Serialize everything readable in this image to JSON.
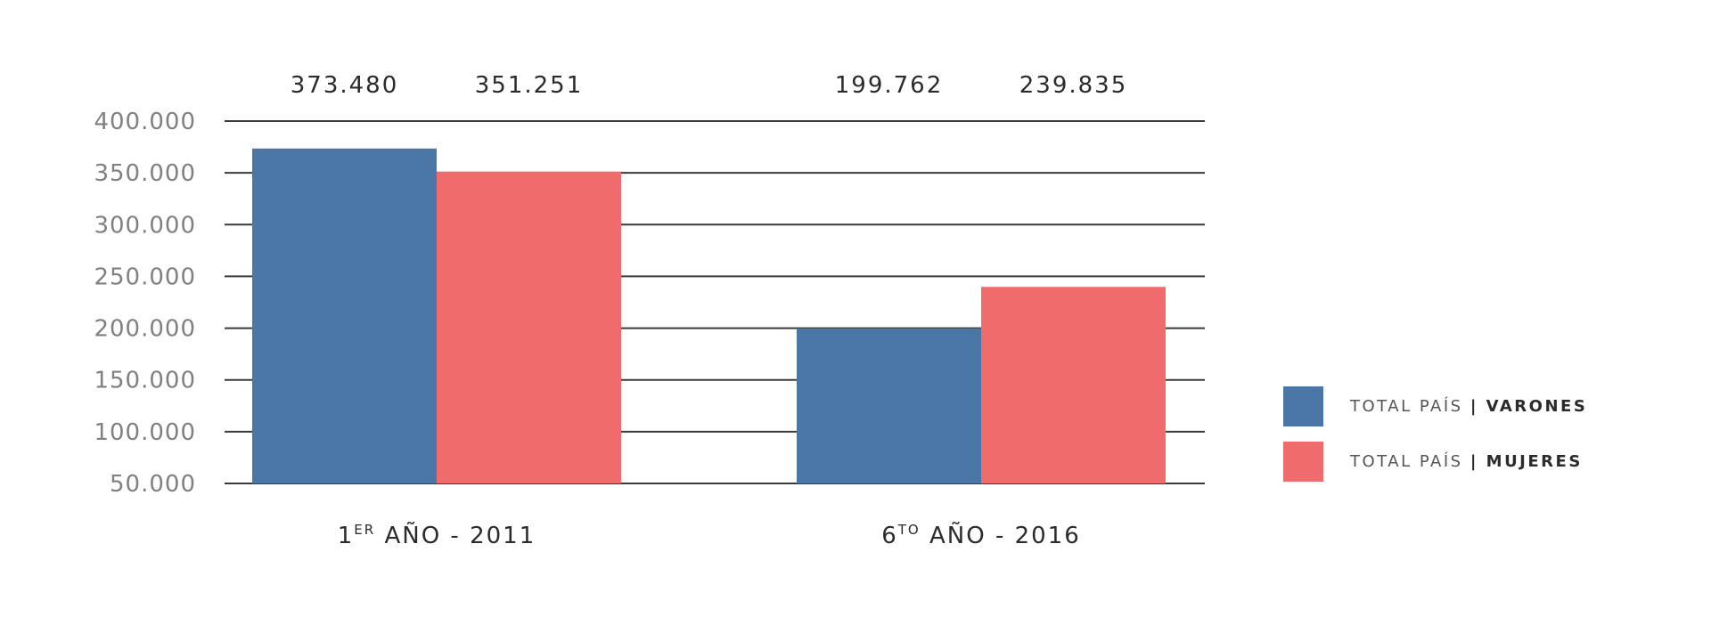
{
  "chart_data": {
    "type": "bar",
    "categories": [
      {
        "main": "1",
        "sup": "ER",
        "rest": " AÑO - 2011"
      },
      {
        "main": "6",
        "sup": "TO",
        "rest": " AÑO - 2016"
      }
    ],
    "series": [
      {
        "name_prefix": "TOTAL PAÍS",
        "name_bold": "| VARONES",
        "color": "#4a77a6",
        "values": [
          373480,
          199762
        ],
        "labels": [
          "373.480",
          "199.762"
        ]
      },
      {
        "name_prefix": "TOTAL PAÍS",
        "name_bold": "| MUJERES",
        "color": "#f06b6c",
        "values": [
          351251,
          239835
        ],
        "labels": [
          "351.251",
          "239.835"
        ]
      }
    ],
    "ylim": [
      50000,
      400000
    ],
    "yticks": [
      "400.000",
      "350.000",
      "300.000",
      "250.000",
      "200.000",
      "150.000",
      "100.000",
      "50.000"
    ],
    "grid": true,
    "legend": "right"
  }
}
